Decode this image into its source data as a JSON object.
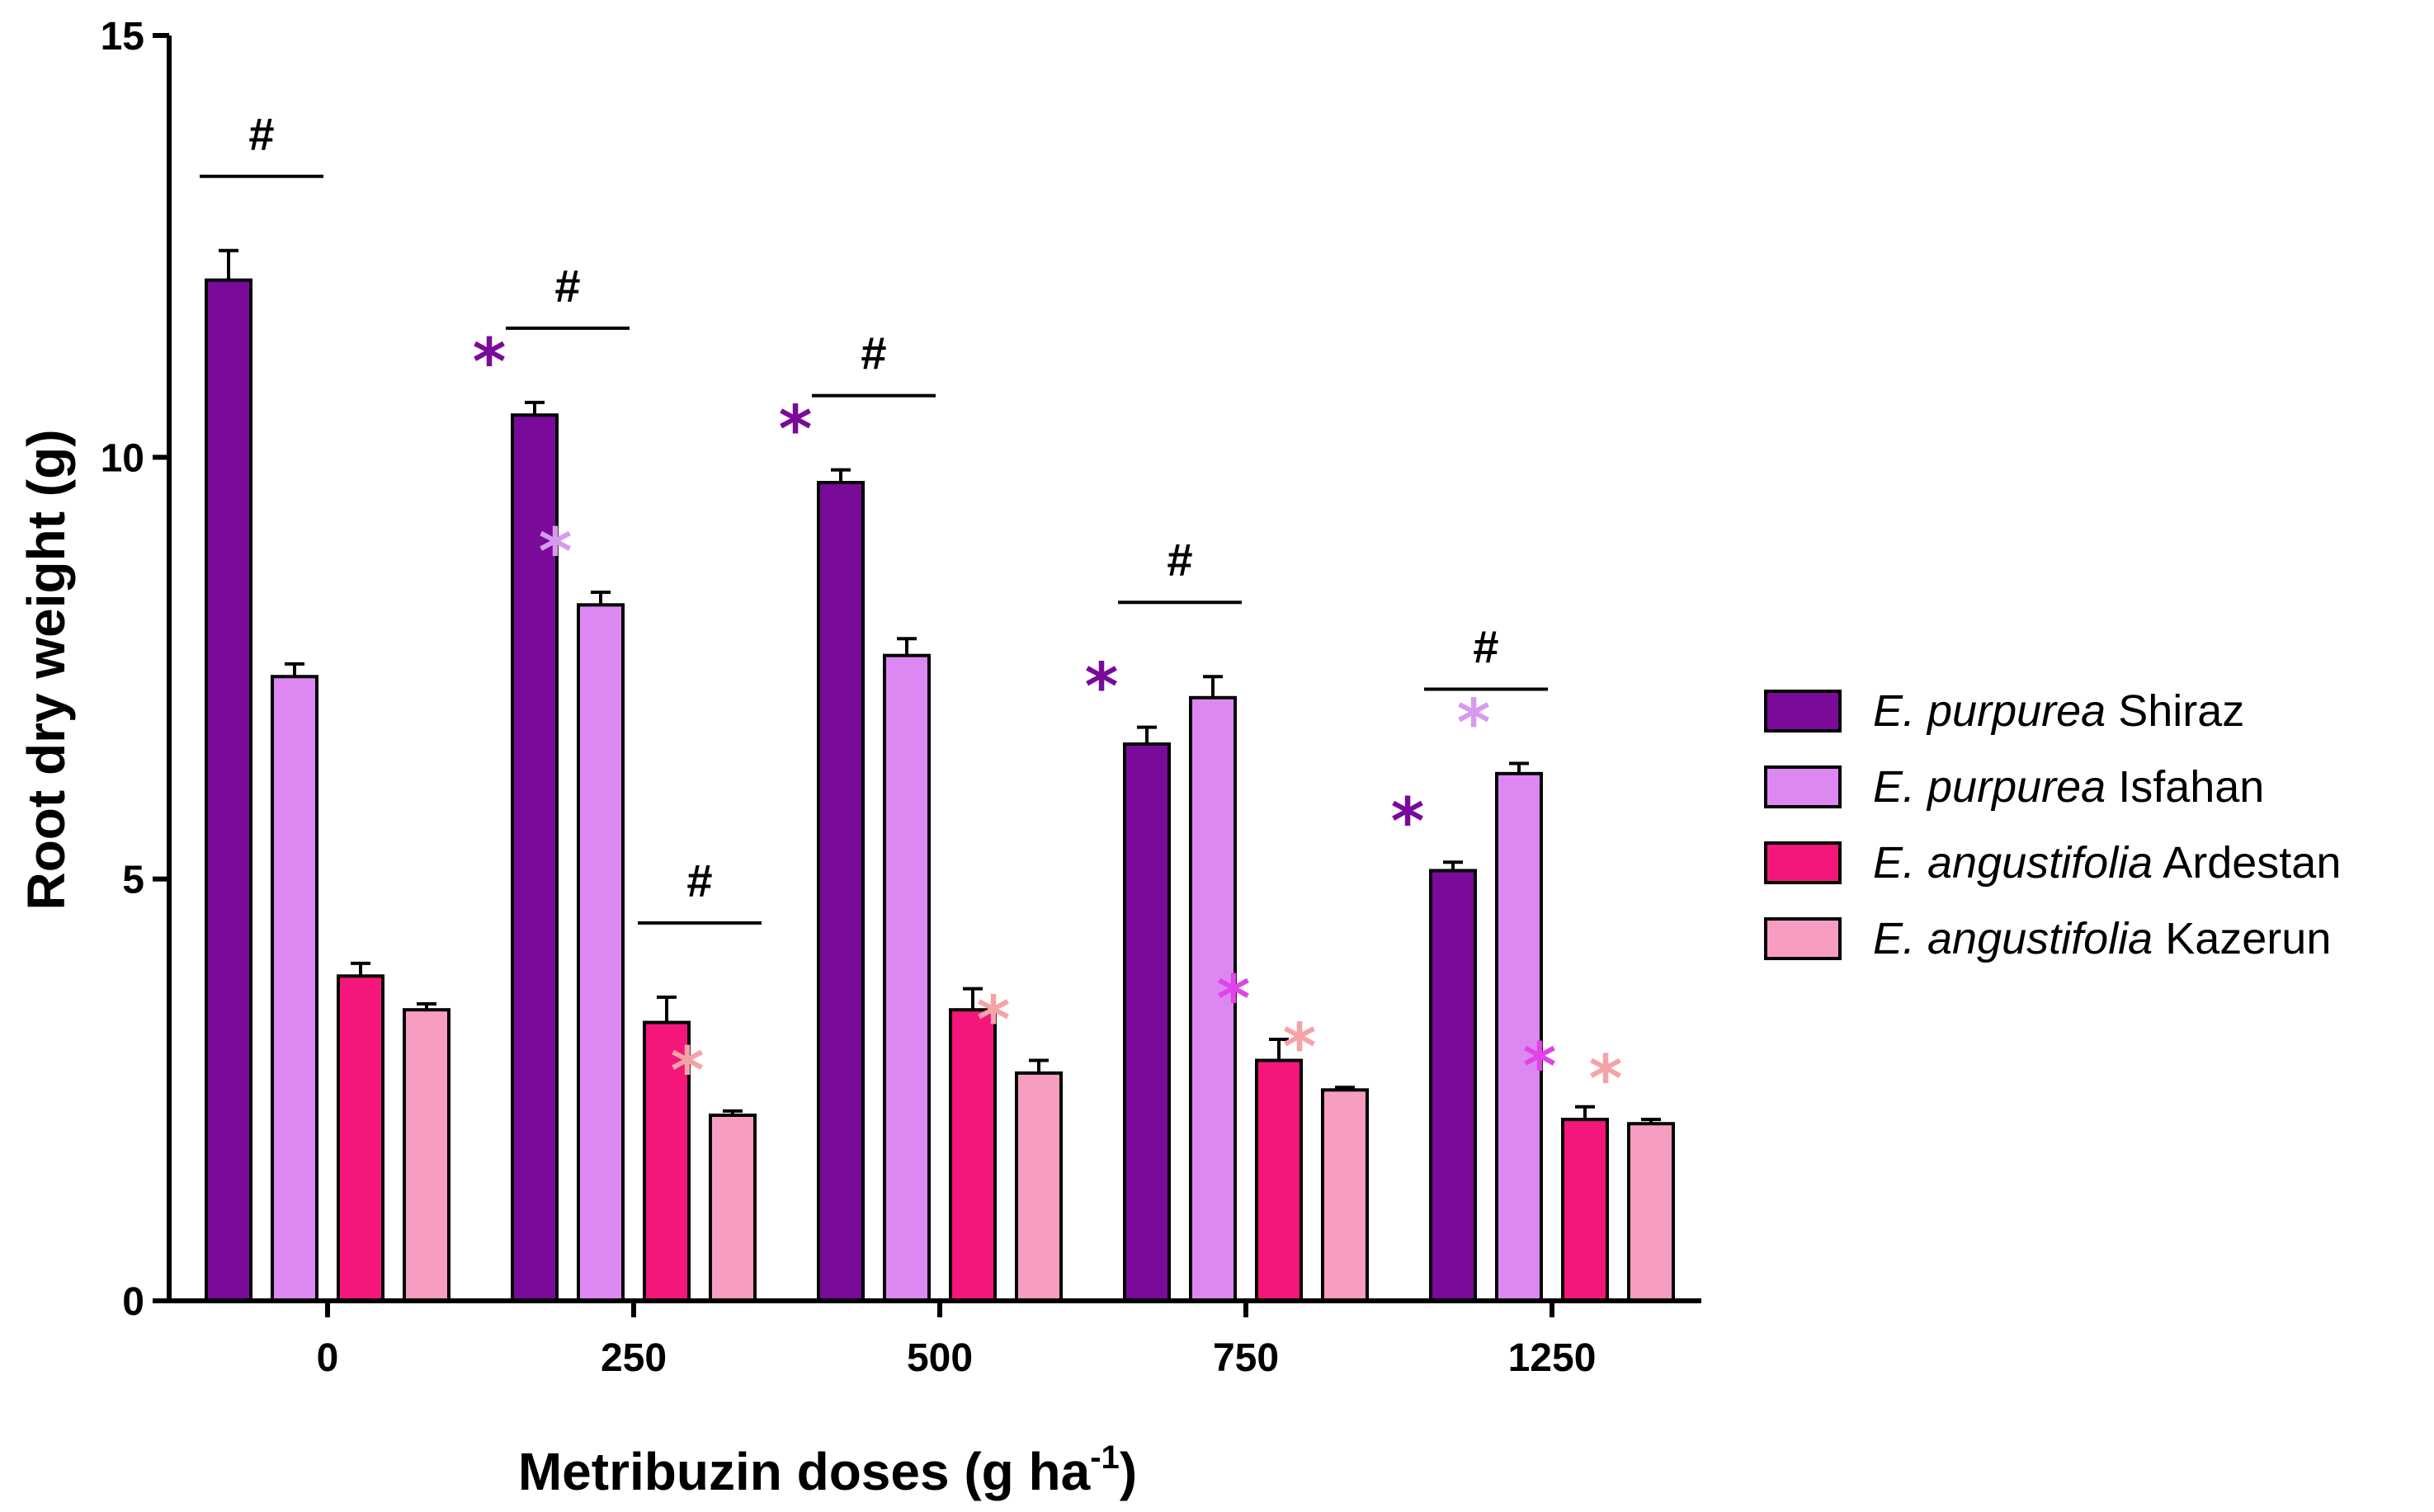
{
  "chart_data": {
    "type": "bar",
    "title": "",
    "xlabel": "Metribuzin doses (g ha",
    "xlabel_superscript": "-1",
    "xlabel_suffix": ")",
    "ylabel": "Root dry weight (g)",
    "ylim": [
      0,
      15
    ],
    "yticks": [
      0,
      5,
      10,
      15
    ],
    "categories": [
      "0",
      "250",
      "500",
      "750",
      "1250"
    ],
    "legend_position": "right",
    "series": [
      {
        "name_italic": "E. purpurea",
        "name_rest": " Shiraz",
        "color": "#7A0A99",
        "values": [
          12.1,
          10.5,
          9.7,
          6.6,
          5.1
        ],
        "errors": [
          0.35,
          0.15,
          0.15,
          0.2,
          0.1
        ],
        "stars": [
          false,
          true,
          true,
          true,
          true
        ],
        "star_color": "#7A0A99"
      },
      {
        "name_italic": "E. purpurea",
        "name_rest": " Isfahan",
        "color": "#DD88F2",
        "values": [
          7.4,
          8.25,
          7.65,
          7.15,
          6.25
        ],
        "errors": [
          0.15,
          0.15,
          0.2,
          0.25,
          0.12
        ],
        "stars": [
          false,
          true,
          false,
          false,
          true
        ],
        "star_color": "#D69BEE"
      },
      {
        "name_italic": "E. angustifolia",
        "name_rest": " Ardestan",
        "color": "#F4167A",
        "values": [
          3.85,
          3.3,
          3.45,
          2.85,
          2.15
        ],
        "errors": [
          0.15,
          0.3,
          0.25,
          0.25,
          0.15
        ],
        "stars": [
          false,
          false,
          false,
          true,
          true
        ],
        "star_color": "#E044E8"
      },
      {
        "name_italic": "E. angustifolia",
        "name_rest": " Kazerun",
        "color": "#F89DC2",
        "values": [
          3.45,
          2.2,
          2.7,
          2.5,
          2.1
        ],
        "errors": [
          0.07,
          0.05,
          0.15,
          0.03,
          0.05
        ],
        "stars": [
          false,
          true,
          true,
          true,
          true
        ],
        "star_color": "#F5A3A6"
      }
    ],
    "annotations": [
      {
        "symbol": "#",
        "category": "0",
        "bars": [
          0,
          1
        ]
      },
      {
        "symbol": "#",
        "category": "250",
        "bars": [
          0,
          1
        ]
      },
      {
        "symbol": "#",
        "category": "250",
        "bars": [
          2,
          3
        ]
      },
      {
        "symbol": "#",
        "category": "500",
        "bars": [
          0,
          1
        ]
      },
      {
        "symbol": "#",
        "category": "750",
        "bars": [
          0,
          1
        ]
      },
      {
        "symbol": "#",
        "category": "1250",
        "bars": [
          0,
          1
        ]
      }
    ],
    "star_symbol": "*"
  }
}
